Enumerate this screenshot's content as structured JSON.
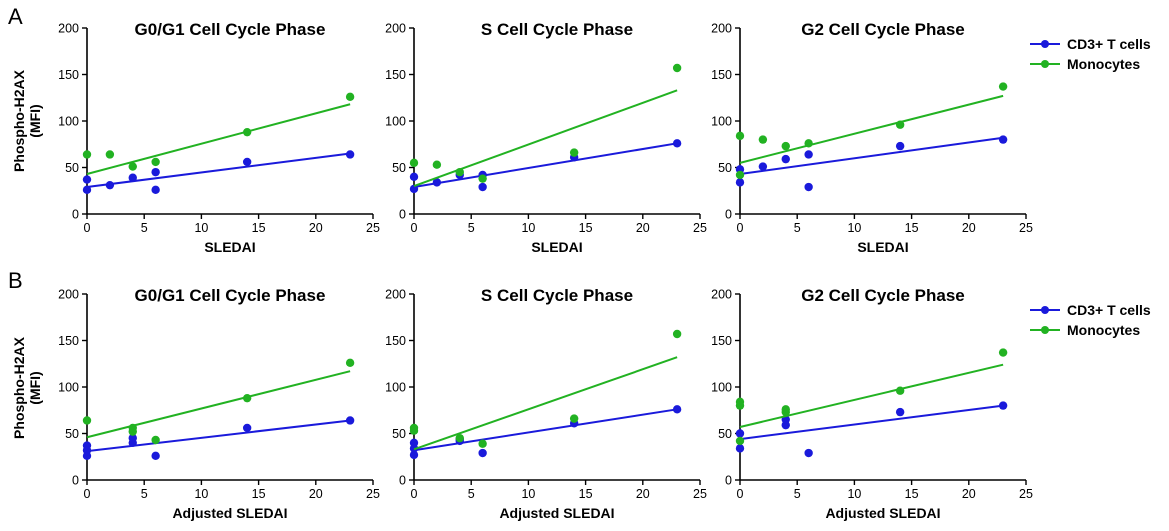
{
  "figure": {
    "row_labels": [
      "A",
      "B"
    ],
    "legend": {
      "entries": [
        {
          "label": "CD3+ T cells",
          "color": "#1a1adb"
        },
        {
          "label": "Monocytes",
          "color": "#22b222"
        }
      ]
    },
    "ylabel_lines": [
      "Phospho-H2AX",
      "(MFI)"
    ]
  },
  "chart_data": [
    {
      "type": "scatter",
      "row": "A",
      "title": "G0/G1 Cell Cycle Phase",
      "xlabel": "SLEDAI",
      "ylabel": "Phospho-H2AX (MFI)",
      "xlim": [
        0,
        25
      ],
      "ylim": [
        0,
        200
      ],
      "xticks": [
        0,
        5,
        10,
        15,
        20,
        25
      ],
      "yticks": [
        0,
        50,
        100,
        150,
        200
      ],
      "grid": false,
      "series": [
        {
          "name": "CD3+ T cells",
          "color": "#1a1adb",
          "points": [
            [
              0,
              37
            ],
            [
              0,
              26
            ],
            [
              2,
              31
            ],
            [
              4,
              39
            ],
            [
              6,
              45
            ],
            [
              6,
              26
            ],
            [
              14,
              56
            ],
            [
              23,
              64
            ]
          ],
          "fit": [
            [
              0,
              29
            ],
            [
              23,
              65
            ]
          ]
        },
        {
          "name": "Monocytes",
          "color": "#22b222",
          "points": [
            [
              0,
              64
            ],
            [
              2,
              64
            ],
            [
              4,
              51
            ],
            [
              6,
              56
            ],
            [
              14,
              88
            ],
            [
              23,
              126
            ]
          ],
          "fit": [
            [
              0,
              43
            ],
            [
              23,
              118
            ]
          ]
        }
      ]
    },
    {
      "type": "scatter",
      "row": "A",
      "title": "S Cell Cycle Phase",
      "xlabel": "SLEDAI",
      "ylabel": "",
      "xlim": [
        0,
        25
      ],
      "ylim": [
        0,
        200
      ],
      "xticks": [
        0,
        5,
        10,
        15,
        20,
        25
      ],
      "yticks": [
        0,
        50,
        100,
        150,
        200
      ],
      "grid": false,
      "series": [
        {
          "name": "CD3+ T cells",
          "color": "#1a1adb",
          "points": [
            [
              0,
              40
            ],
            [
              0,
              27
            ],
            [
              2,
              34
            ],
            [
              4,
              42
            ],
            [
              6,
              42
            ],
            [
              6,
              29
            ],
            [
              14,
              61
            ],
            [
              23,
              76
            ]
          ],
          "fit": [
            [
              0,
              29
            ],
            [
              23,
              76
            ]
          ]
        },
        {
          "name": "Monocytes",
          "color": "#22b222",
          "points": [
            [
              0,
              55
            ],
            [
              2,
              53
            ],
            [
              4,
              45
            ],
            [
              6,
              38
            ],
            [
              14,
              66
            ],
            [
              23,
              157
            ]
          ],
          "fit": [
            [
              0,
              30
            ],
            [
              23,
              133
            ]
          ]
        }
      ]
    },
    {
      "type": "scatter",
      "row": "A",
      "title": "G2 Cell Cycle Phase",
      "xlabel": "SLEDAI",
      "ylabel": "",
      "xlim": [
        0,
        25
      ],
      "ylim": [
        0,
        200
      ],
      "xticks": [
        0,
        5,
        10,
        15,
        20,
        25
      ],
      "yticks": [
        0,
        50,
        100,
        150,
        200
      ],
      "grid": false,
      "series": [
        {
          "name": "CD3+ T cells",
          "color": "#1a1adb",
          "points": [
            [
              0,
              48
            ],
            [
              0,
              34
            ],
            [
              2,
              51
            ],
            [
              4,
              59
            ],
            [
              6,
              64
            ],
            [
              6,
              29
            ],
            [
              14,
              73
            ],
            [
              23,
              80
            ]
          ],
          "fit": [
            [
              0,
              43
            ],
            [
              23,
              82
            ]
          ]
        },
        {
          "name": "Monocytes",
          "color": "#22b222",
          "points": [
            [
              0,
              84
            ],
            [
              0,
              42
            ],
            [
              2,
              80
            ],
            [
              4,
              73
            ],
            [
              6,
              76
            ],
            [
              14,
              96
            ],
            [
              23,
              137
            ]
          ],
          "fit": [
            [
              0,
              55
            ],
            [
              23,
              127
            ]
          ]
        }
      ]
    },
    {
      "type": "scatter",
      "row": "B",
      "title": "G0/G1 Cell Cycle Phase",
      "xlabel": "Adjusted SLEDAI",
      "ylabel": "Phospho-H2AX (MFI)",
      "xlim": [
        0,
        25
      ],
      "ylim": [
        0,
        200
      ],
      "xticks": [
        0,
        5,
        10,
        15,
        20,
        25
      ],
      "yticks": [
        0,
        50,
        100,
        150,
        200
      ],
      "grid": false,
      "series": [
        {
          "name": "CD3+ T cells",
          "color": "#1a1adb",
          "points": [
            [
              0,
              37
            ],
            [
              0,
              26
            ],
            [
              0,
              32
            ],
            [
              4,
              45
            ],
            [
              4,
              40
            ],
            [
              6,
              26
            ],
            [
              14,
              56
            ],
            [
              23,
              64
            ]
          ],
          "fit": [
            [
              0,
              31
            ],
            [
              23,
              64
            ]
          ]
        },
        {
          "name": "Monocytes",
          "color": "#22b222",
          "points": [
            [
              0,
              64
            ],
            [
              4,
              56
            ],
            [
              4,
              52
            ],
            [
              6,
              43
            ],
            [
              14,
              88
            ],
            [
              23,
              126
            ]
          ],
          "fit": [
            [
              0,
              46
            ],
            [
              23,
              117
            ]
          ]
        }
      ]
    },
    {
      "type": "scatter",
      "row": "B",
      "title": "S Cell Cycle Phase",
      "xlabel": "Adjusted SLEDAI",
      "ylabel": "",
      "xlim": [
        0,
        25
      ],
      "ylim": [
        0,
        200
      ],
      "xticks": [
        0,
        5,
        10,
        15,
        20,
        25
      ],
      "yticks": [
        0,
        50,
        100,
        150,
        200
      ],
      "grid": false,
      "series": [
        {
          "name": "CD3+ T cells",
          "color": "#1a1adb",
          "points": [
            [
              0,
              40
            ],
            [
              0,
              27
            ],
            [
              0,
              34
            ],
            [
              4,
              42
            ],
            [
              4,
              44
            ],
            [
              6,
              29
            ],
            [
              14,
              61
            ],
            [
              23,
              76
            ]
          ],
          "fit": [
            [
              0,
              32
            ],
            [
              23,
              76
            ]
          ]
        },
        {
          "name": "Monocytes",
          "color": "#22b222",
          "points": [
            [
              0,
              56
            ],
            [
              0,
              53
            ],
            [
              4,
              45
            ],
            [
              6,
              39
            ],
            [
              14,
              66
            ],
            [
              23,
              157
            ]
          ],
          "fit": [
            [
              0,
              33
            ],
            [
              23,
              132
            ]
          ]
        }
      ]
    },
    {
      "type": "scatter",
      "row": "B",
      "title": "G2 Cell Cycle Phase",
      "xlabel": "Adjusted SLEDAI",
      "ylabel": "",
      "xlim": [
        0,
        25
      ],
      "ylim": [
        0,
        200
      ],
      "xticks": [
        0,
        5,
        10,
        15,
        20,
        25
      ],
      "yticks": [
        0,
        50,
        100,
        150,
        200
      ],
      "grid": false,
      "series": [
        {
          "name": "CD3+ T cells",
          "color": "#1a1adb",
          "points": [
            [
              0,
              50
            ],
            [
              0,
              34
            ],
            [
              4,
              59
            ],
            [
              4,
              65
            ],
            [
              6,
              29
            ],
            [
              14,
              73
            ],
            [
              23,
              80
            ]
          ],
          "fit": [
            [
              0,
              44
            ],
            [
              23,
              80
            ]
          ]
        },
        {
          "name": "Monocytes",
          "color": "#22b222",
          "points": [
            [
              0,
              84
            ],
            [
              0,
              80
            ],
            [
              0,
              42
            ],
            [
              4,
              76
            ],
            [
              4,
              73
            ],
            [
              14,
              96
            ],
            [
              23,
              137
            ]
          ],
          "fit": [
            [
              0,
              57
            ],
            [
              23,
              124
            ]
          ]
        }
      ]
    }
  ]
}
